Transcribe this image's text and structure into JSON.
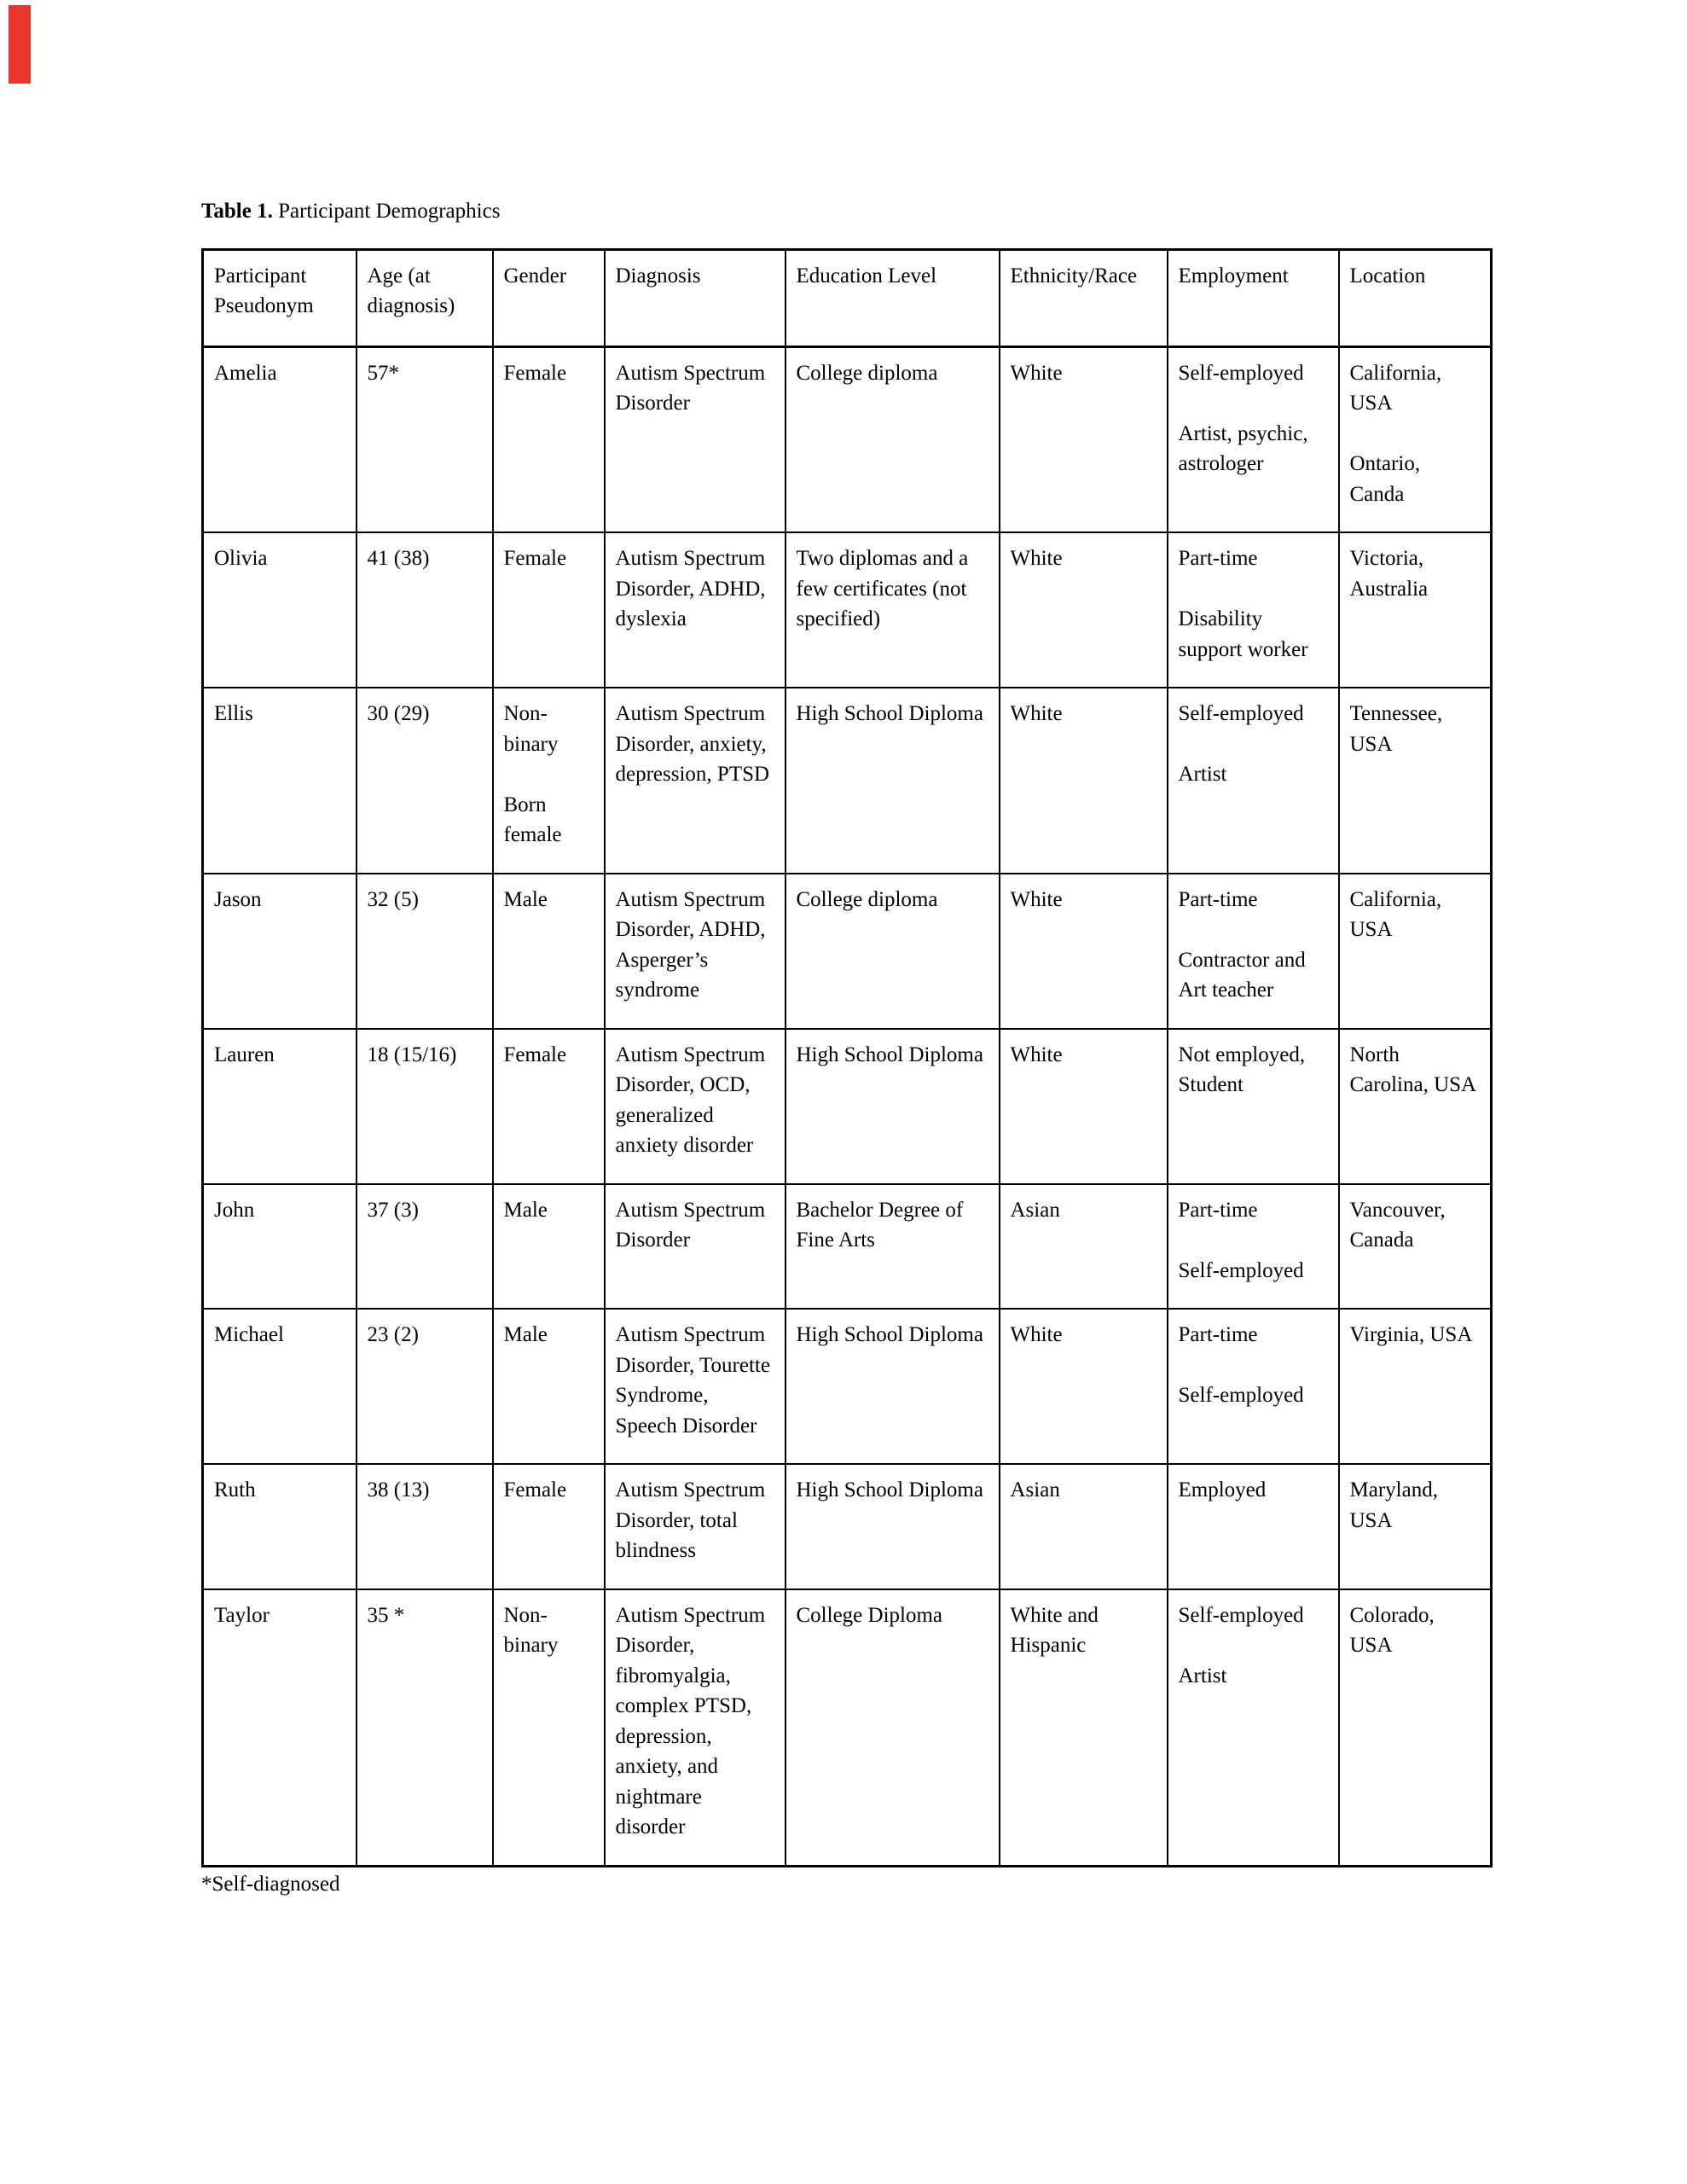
{
  "title": {
    "label": "Table 1.",
    "text": " Participant Demographics"
  },
  "footnote": "*Self-diagnosed",
  "colors": {
    "bookmark_red": "#e8372b",
    "text": "#000000",
    "border": "#000000",
    "page_background": "#ffffff"
  },
  "table": {
    "columns": [
      "Participant Pseudonym",
      "Age (at diagnosis)",
      "Gender",
      "Diagnosis",
      "Education Level",
      "Ethnicity/Race",
      "Employment",
      "Location"
    ],
    "rows": [
      [
        "Amelia",
        "57*",
        "Female",
        "Autism Spectrum Disorder",
        "College diploma",
        "White",
        "Self-employed\n\nArtist, psychic, astrologer",
        "California, USA\n\nOntario, Canda"
      ],
      [
        "Olivia",
        "41 (38)",
        "Female",
        "Autism Spectrum Disorder, ADHD, dyslexia",
        "Two diplomas and a few certificates (not specified)",
        "White",
        "Part-time\n\nDisability support worker",
        "Victoria, Australia"
      ],
      [
        "Ellis",
        "30 (29)",
        "Non-binary\n\nBorn female",
        "Autism Spectrum Disorder, anxiety, depression, PTSD",
        "High School Diploma",
        "White",
        "Self-employed\n\nArtist",
        "Tennessee, USA"
      ],
      [
        "Jason",
        "32 (5)",
        "Male",
        "Autism Spectrum Disorder, ADHD, Asperger’s syndrome",
        "College diploma",
        "White",
        "Part-time\n\nContractor and Art teacher",
        "California, USA"
      ],
      [
        "Lauren",
        "18 (15/16)",
        "Female",
        "Autism Spectrum Disorder, OCD, generalized anxiety disorder",
        "High School Diploma",
        "White",
        "Not employed, Student",
        "North Carolina, USA"
      ],
      [
        "John",
        "37 (3)",
        "Male",
        "Autism Spectrum Disorder",
        "Bachelor Degree of Fine Arts",
        "Asian",
        "Part-time\n\nSelf-employed",
        "Vancouver, Canada"
      ],
      [
        "Michael",
        "23 (2)",
        "Male",
        "Autism Spectrum Disorder, Tourette Syndrome, Speech Disorder",
        "High School Diploma",
        "White",
        "Part-time\n\nSelf-employed",
        "Virginia, USA"
      ],
      [
        "Ruth",
        "38 (13)",
        "Female",
        "Autism Spectrum Disorder, total blindness",
        "High School Diploma",
        "Asian",
        "Employed",
        "Maryland, USA"
      ],
      [
        "Taylor",
        "35 *",
        "Non-binary",
        "Autism Spectrum Disorder, fibromyalgia, complex PTSD, depression, anxiety, and nightmare disorder",
        "College Diploma",
        "White and Hispanic",
        "Self-employed\n\nArtist",
        "Colorado, USA"
      ]
    ]
  }
}
